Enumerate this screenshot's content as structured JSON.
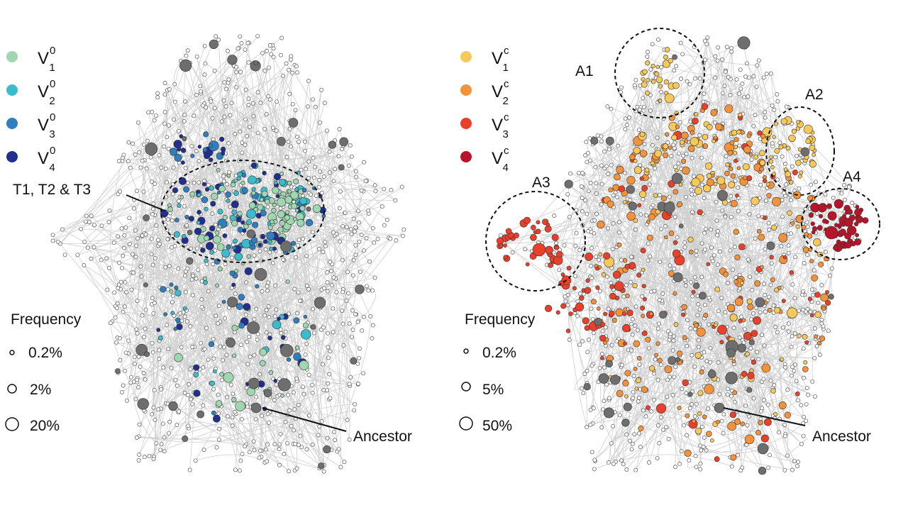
{
  "left_panel": {
    "legend": [
      {
        "base": "V",
        "sup": "0",
        "sub": "1",
        "color": "#9fd8b0"
      },
      {
        "base": "V",
        "sup": "0",
        "sub": "2",
        "color": "#3bbccc"
      },
      {
        "base": "V",
        "sup": "0",
        "sub": "3",
        "color": "#2f7fbf"
      },
      {
        "base": "V",
        "sup": "0",
        "sub": "4",
        "color": "#232f8f"
      }
    ],
    "frequency_title": "Frequency",
    "frequency_sizes": [
      "0.2%",
      "2%",
      "20%"
    ],
    "annotation_cluster": "T1, T2 & T3",
    "annotation_ancestor": "Ancestor"
  },
  "right_panel": {
    "legend": [
      {
        "base": "V",
        "sup": "c",
        "sub": "1",
        "color": "#f7c85a"
      },
      {
        "base": "V",
        "sup": "c",
        "sub": "2",
        "color": "#f3923a"
      },
      {
        "base": "V",
        "sup": "c",
        "sub": "3",
        "color": "#e8402a"
      },
      {
        "base": "V",
        "sup": "c",
        "sub": "4",
        "color": "#b8142a"
      }
    ],
    "frequency_title": "Frequency",
    "frequency_sizes": [
      "0.2%",
      "5%",
      "50%"
    ],
    "regions": [
      "A1",
      "A2",
      "A3",
      "A4"
    ],
    "annotation_ancestor": "Ancestor"
  },
  "colors": {
    "uncolored_node": "#ffffff",
    "ancestral_node": "#6e6e6e",
    "edge": "#cfcfcf"
  }
}
